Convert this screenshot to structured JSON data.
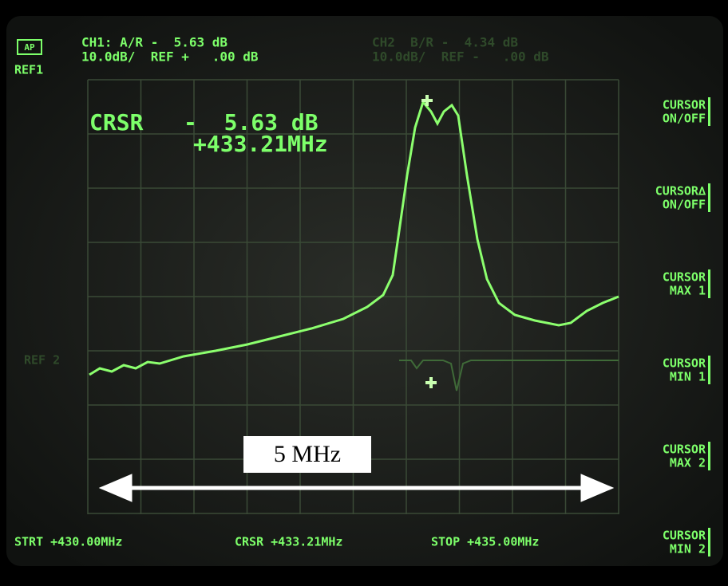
{
  "header": {
    "badge": "AP",
    "ref1": "REF1",
    "ch1_line1": "CH1: A/R -  5.63 dB",
    "ch1_line2": "10.0dB/  REF +   .00 dB",
    "ch2_line1": "CH2  B/R -  4.34 dB",
    "ch2_line2": "10.0dB/  REF -   .00 dB"
  },
  "cursor_readout": {
    "line1": "CRSR   -  5.63 dB",
    "line2": "+433.21MHz"
  },
  "ref2": "REF 2",
  "softkeys": [
    {
      "line1": "CURSOR",
      "line2": "ON/OFF"
    },
    {
      "line1": "CURSOR∆",
      "line2": "ON/OFF"
    },
    {
      "line1": "CURSOR",
      "line2": "MAX 1"
    },
    {
      "line1": "CURSOR",
      "line2": "MIN 1"
    },
    {
      "line1": "CURSOR",
      "line2": "MAX 2"
    },
    {
      "line1": "CURSOR",
      "line2": "MIN 2"
    }
  ],
  "footer": {
    "start": "STRT +430.00MHz",
    "cursor": "CRSR +433.21MHz",
    "stop": "STOP +435.00MHz"
  },
  "annotation": "5 MHz"
}
